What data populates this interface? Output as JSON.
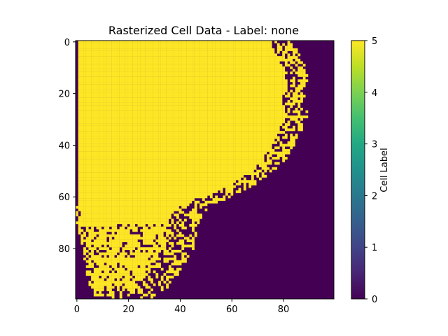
{
  "chart_data": {
    "type": "heatmap",
    "title": "Rasterized Cell Data - Label: none",
    "grid": false,
    "xlim": [
      -0.5,
      99.5
    ],
    "ylim": [
      99.5,
      -0.5
    ],
    "x_ticks": [
      0,
      20,
      40,
      60,
      80
    ],
    "y_ticks": [
      0,
      20,
      40,
      60,
      80
    ],
    "colormap": "viridis",
    "colors": {
      "low": "#440154",
      "high": "#fde725"
    },
    "colorbar": {
      "label": "Cell Label",
      "range": [
        0,
        5
      ],
      "ticks": [
        0,
        1,
        2,
        3,
        4,
        5
      ],
      "placement": "right"
    },
    "values_present": [
      0,
      5
    ],
    "region_boundary": {
      "description": "value 5 inside a blob bounded by left column edge and right-edge x per row; value 0 outside",
      "rows": [
        0,
        5,
        10,
        15,
        20,
        25,
        30,
        35,
        40,
        45,
        50,
        55,
        60,
        65,
        70,
        75,
        80,
        85,
        90,
        95,
        99
      ],
      "left_edge": [
        1,
        1,
        1,
        1,
        1,
        1,
        1,
        1,
        1,
        1,
        1,
        1,
        1,
        1,
        2,
        3,
        4,
        5,
        6,
        7,
        8
      ],
      "right_edge": [
        82,
        84,
        87,
        87,
        86,
        87,
        87,
        85,
        82,
        79,
        74,
        67,
        57,
        48,
        45,
        44,
        43,
        40,
        37,
        33,
        28
      ]
    }
  }
}
